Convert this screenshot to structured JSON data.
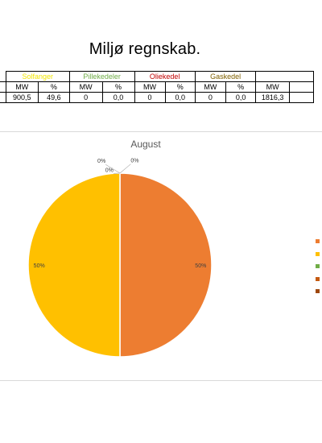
{
  "title": "Miljø regnskab.",
  "table": {
    "groups": [
      {
        "label": "Solfanger",
        "color": "#f2e600"
      },
      {
        "label": "Pillekedeler",
        "color": "#70ad47"
      },
      {
        "label": "Oliekedel",
        "color": "#c00000"
      },
      {
        "label": "Gaskedel",
        "color": "#7f6000"
      }
    ],
    "units": {
      "mw": "MW",
      "pct": "%"
    },
    "values": {
      "group0": {
        "mw": "900,5",
        "pct": "49,6"
      },
      "group1": {
        "mw": "0",
        "pct": "0,0"
      },
      "group2": {
        "mw": "0",
        "pct": "0,0"
      },
      "group3": {
        "mw": "0",
        "pct": "0,0"
      },
      "total": {
        "mw": "1816,3"
      }
    }
  },
  "chart_data": {
    "type": "pie",
    "title": "August",
    "series": [
      {
        "value": 50,
        "label": "50%",
        "color": "#ed7d31"
      },
      {
        "value": 50,
        "label": "50%",
        "color": "#ffc000"
      },
      {
        "value": 0,
        "label": "0%",
        "color": "#70ad47"
      },
      {
        "value": 0,
        "label": "0%",
        "color": "#c55a11"
      },
      {
        "value": 0,
        "label": "0%",
        "color": "#9e480e"
      }
    ],
    "legend_position": "right"
  }
}
